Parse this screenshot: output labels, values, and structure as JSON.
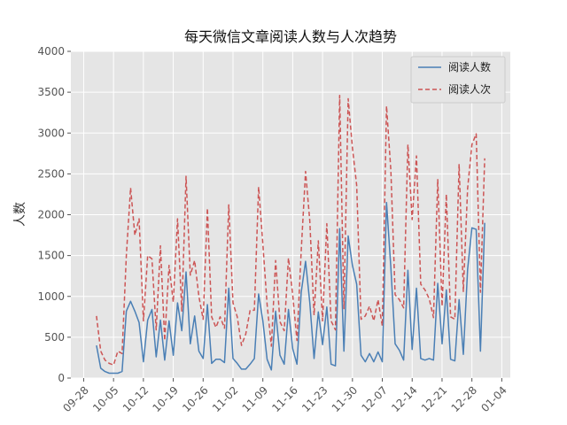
{
  "chart_data": {
    "type": "line",
    "title": "每天微信文章阅读人数与人次趋势",
    "xlabel": "",
    "ylabel": "人数",
    "ylim": [
      0,
      4000
    ],
    "yticks": [
      0,
      500,
      1000,
      1500,
      2000,
      2500,
      3000,
      3500,
      4000
    ],
    "xlim": [
      "2017-09-25",
      "2018-01-06"
    ],
    "xticks": [
      "2017-09-28",
      "2017-10-05",
      "2017-10-12",
      "2017-10-19",
      "2017-10-26",
      "2017-11-02",
      "2017-11-09",
      "2017-11-16",
      "2017-11-23",
      "2017-11-30",
      "2017-12-07",
      "2017-12-14",
      "2017-12-21",
      "2017-12-28",
      "2018-01-04"
    ],
    "xtick_labels": [
      "09-28",
      "10-05",
      "10-12",
      "10-19",
      "10-26",
      "11-02",
      "11-09",
      "11-16",
      "11-23",
      "11-30",
      "12-07",
      "12-14",
      "12-21",
      "12-28",
      "01-04"
    ],
    "grid": true,
    "legend_position": "top-right",
    "background": "#e5e5e5",
    "x": [
      "2017-10-01",
      "2017-10-02",
      "2017-10-03",
      "2017-10-04",
      "2017-10-05",
      "2017-10-06",
      "2017-10-07",
      "2017-10-08",
      "2017-10-09",
      "2017-10-10",
      "2017-10-11",
      "2017-10-12",
      "2017-10-13",
      "2017-10-14",
      "2017-10-15",
      "2017-10-16",
      "2017-10-17",
      "2017-10-18",
      "2017-10-19",
      "2017-10-20",
      "2017-10-21",
      "2017-10-22",
      "2017-10-23",
      "2017-10-24",
      "2017-10-25",
      "2017-10-26",
      "2017-10-27",
      "2017-10-28",
      "2017-10-29",
      "2017-10-30",
      "2017-10-31",
      "2017-11-01",
      "2017-11-02",
      "2017-11-03",
      "2017-11-04",
      "2017-11-05",
      "2017-11-06",
      "2017-11-07",
      "2017-11-08",
      "2017-11-09",
      "2017-11-10",
      "2017-11-11",
      "2017-11-12",
      "2017-11-13",
      "2017-11-14",
      "2017-11-15",
      "2017-11-16",
      "2017-11-17",
      "2017-11-18",
      "2017-11-19",
      "2017-11-20",
      "2017-11-21",
      "2017-11-22",
      "2017-11-23",
      "2017-11-24",
      "2017-11-25",
      "2017-11-26",
      "2017-11-27",
      "2017-11-28",
      "2017-11-29",
      "2017-11-30",
      "2017-12-01",
      "2017-12-02",
      "2017-12-03",
      "2017-12-04",
      "2017-12-05",
      "2017-12-06",
      "2017-12-07",
      "2017-12-08",
      "2017-12-09",
      "2017-12-10",
      "2017-12-11",
      "2017-12-12",
      "2017-12-13",
      "2017-12-14",
      "2017-12-15",
      "2017-12-16",
      "2017-12-17",
      "2017-12-18",
      "2017-12-19",
      "2017-12-20",
      "2017-12-21",
      "2017-12-22",
      "2017-12-23",
      "2017-12-24",
      "2017-12-25",
      "2017-12-26",
      "2017-12-27",
      "2017-12-28",
      "2017-12-29",
      "2017-12-30",
      "2017-12-31"
    ],
    "series": [
      {
        "name": "阅读人数",
        "color": "#4a7fb5",
        "style": "solid",
        "values": [
          400,
          120,
          80,
          60,
          60,
          60,
          80,
          820,
          940,
          820,
          680,
          200,
          710,
          840,
          260,
          710,
          220,
          700,
          280,
          920,
          580,
          1300,
          420,
          760,
          330,
          240,
          900,
          180,
          230,
          230,
          190,
          1100,
          240,
          180,
          110,
          110,
          170,
          240,
          1030,
          700,
          230,
          100,
          820,
          280,
          170,
          840,
          360,
          170,
          1050,
          1430,
          920,
          240,
          810,
          410,
          870,
          170,
          150,
          1830,
          330,
          1740,
          1380,
          1150,
          280,
          200,
          300,
          200,
          320,
          200,
          2150,
          1350,
          420,
          340,
          220,
          1320,
          350,
          1100,
          240,
          220,
          240,
          220,
          1160,
          420,
          1080,
          230,
          210,
          960,
          290,
          1330,
          1840,
          1820,
          330,
          1900
        ]
      },
      {
        "name": "阅读人次",
        "color": "#cc5555",
        "style": "dashed",
        "values": [
          760,
          330,
          220,
          180,
          160,
          330,
          300,
          1500,
          2330,
          1750,
          1950,
          700,
          1500,
          1460,
          590,
          1620,
          460,
          1380,
          930,
          1950,
          820,
          2470,
          1260,
          1440,
          1000,
          720,
          2080,
          750,
          620,
          750,
          610,
          2120,
          920,
          750,
          400,
          540,
          830,
          830,
          2340,
          1640,
          900,
          390,
          1440,
          690,
          580,
          1470,
          1020,
          460,
          1560,
          2530,
          1920,
          770,
          1680,
          700,
          1890,
          700,
          590,
          3460,
          850,
          3420,
          2820,
          2360,
          720,
          760,
          880,
          700,
          960,
          640,
          3330,
          2540,
          1020,
          960,
          860,
          2860,
          1940,
          2720,
          1150,
          1080,
          970,
          740,
          2430,
          880,
          2250,
          750,
          720,
          2620,
          1060,
          2320,
          2860,
          2990,
          1050,
          2690
        ]
      }
    ]
  }
}
